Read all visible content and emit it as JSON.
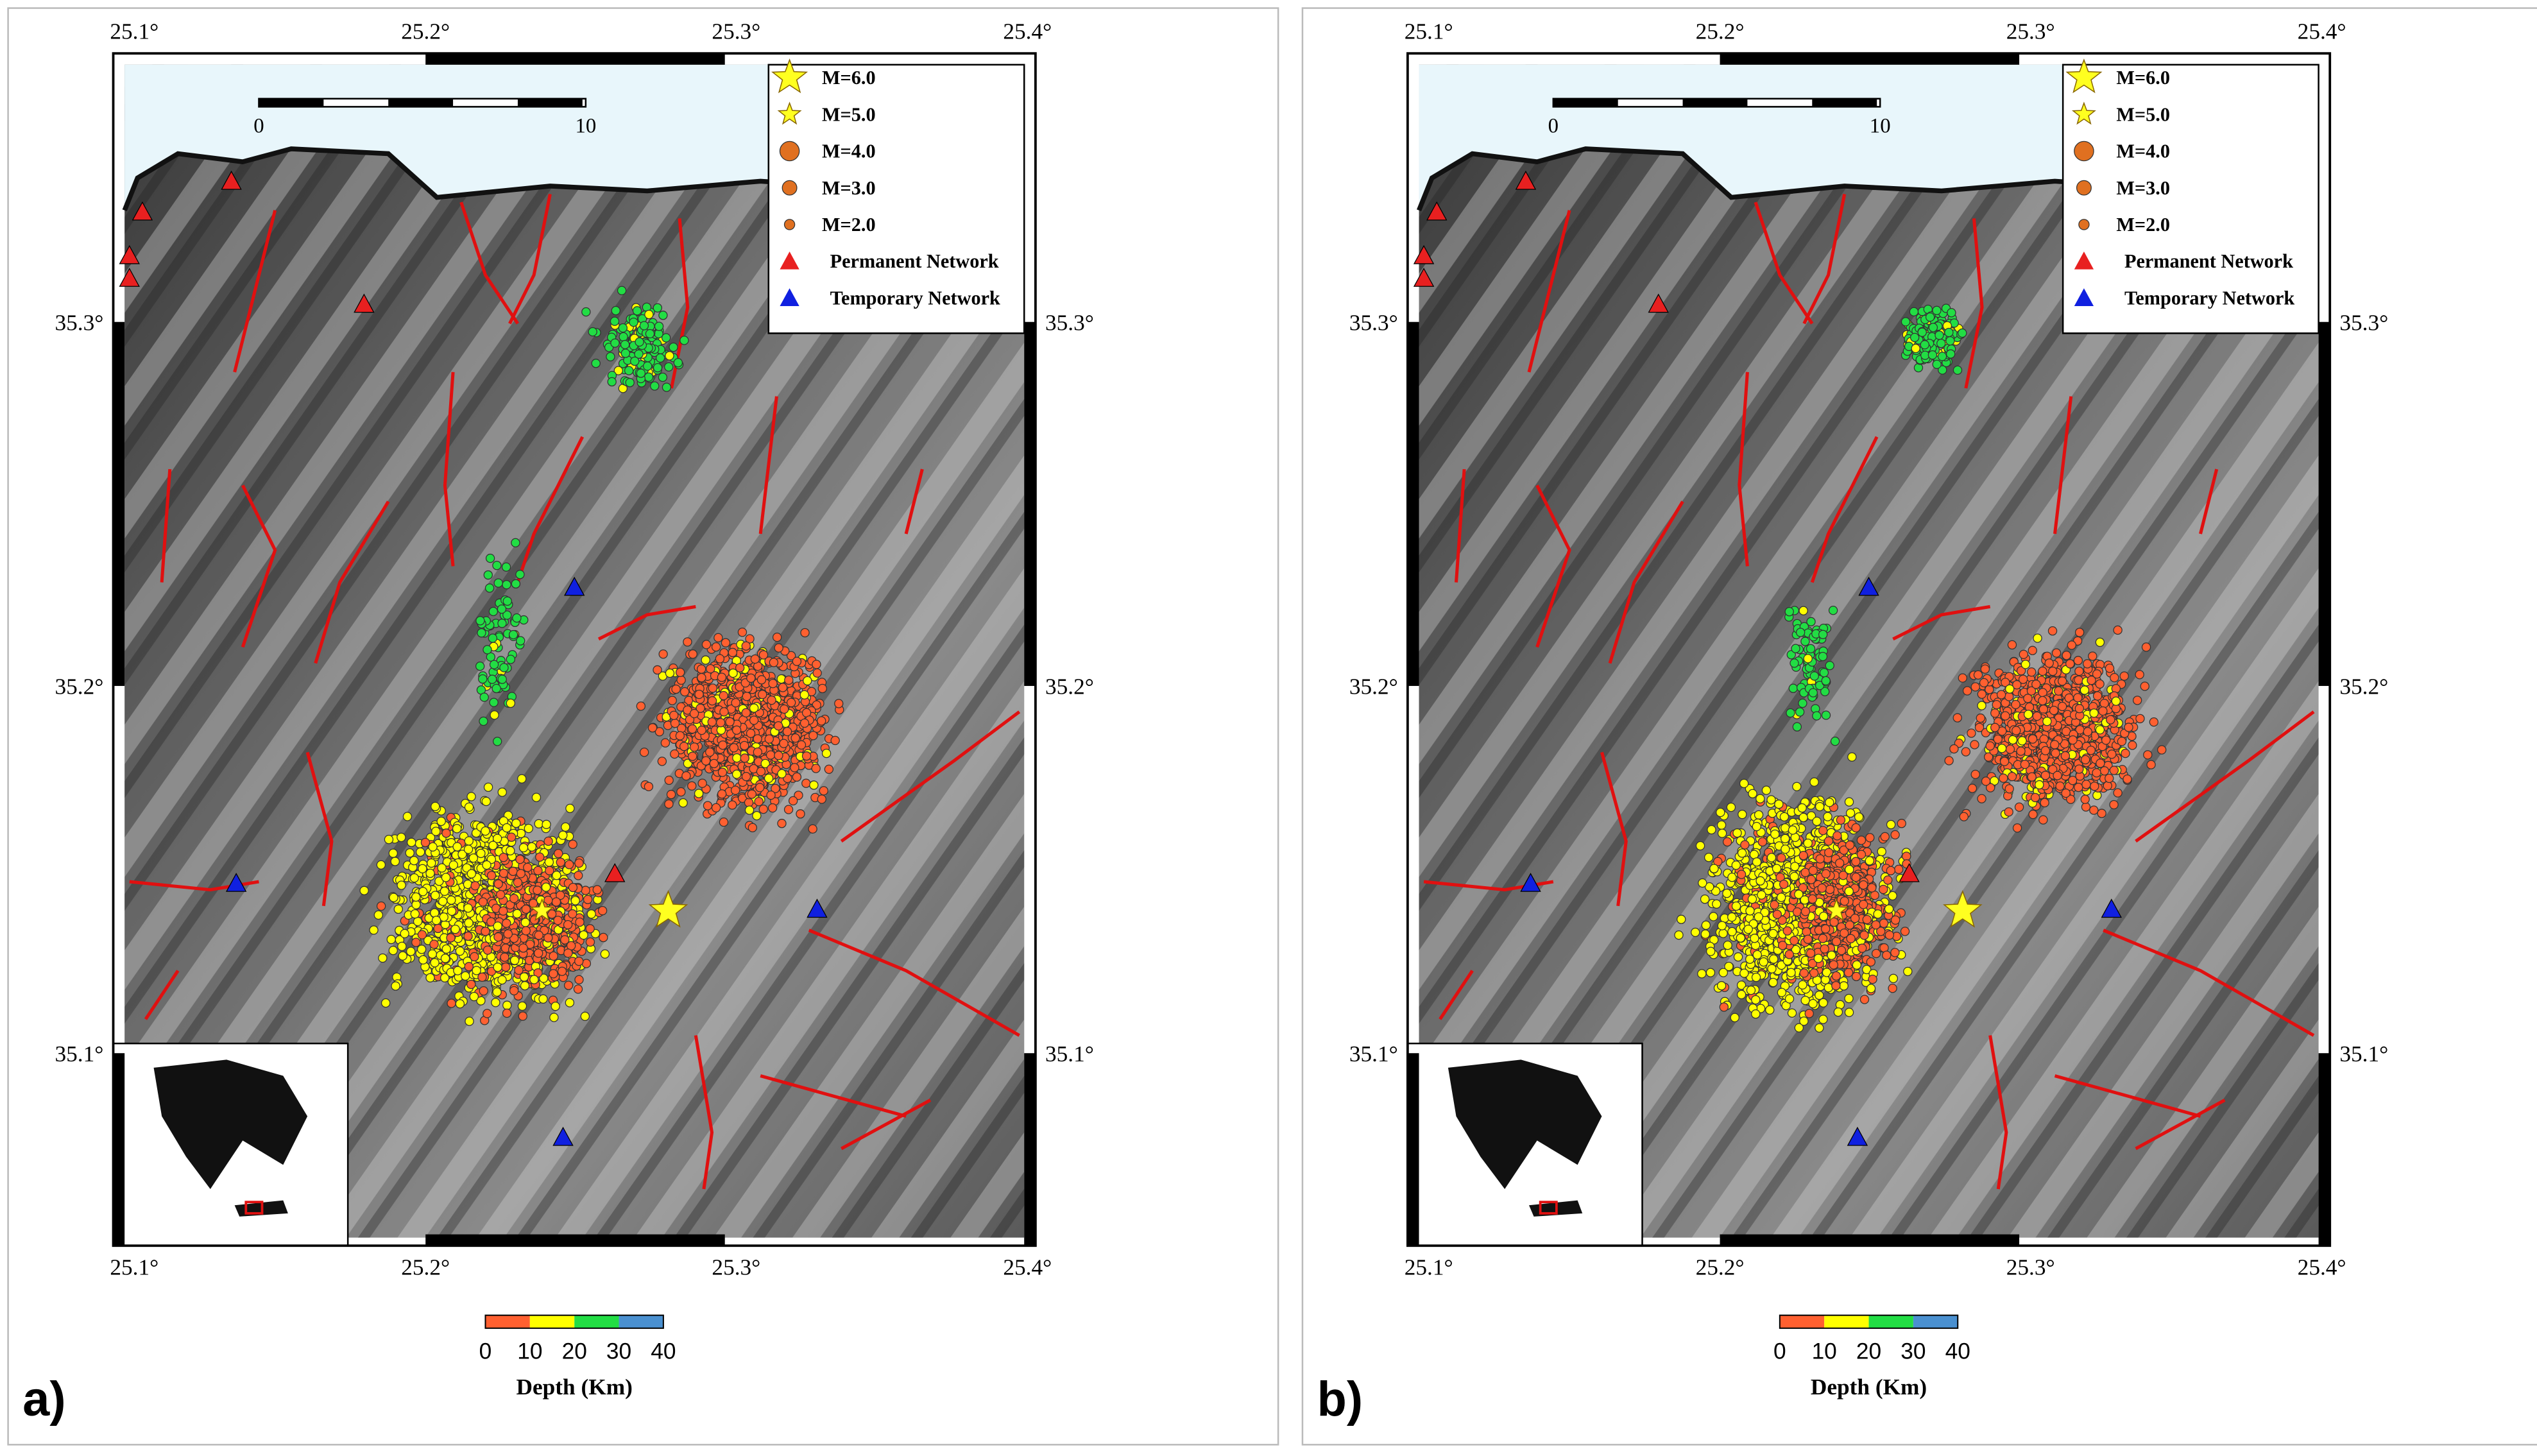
{
  "figure": {
    "panels": [
      {
        "label": "a)"
      },
      {
        "label": "b)"
      }
    ],
    "lon_ticks": [
      "25.1°",
      "25.2°",
      "25.3°",
      "25.4°"
    ],
    "lat_ticks": [
      "35.3°",
      "35.2°",
      "35.1°"
    ],
    "scale_bar": [
      "0",
      "10"
    ],
    "legend": [
      "M=6.0",
      "M=5.0",
      "M=4.0",
      "M=3.0",
      "M=2.0",
      "Permanent Network",
      "Temporary Network"
    ],
    "colorbar": {
      "ticks": [
        "0",
        "10",
        "20",
        "30",
        "40"
      ],
      "title": "Depth (Km)"
    }
  }
}
